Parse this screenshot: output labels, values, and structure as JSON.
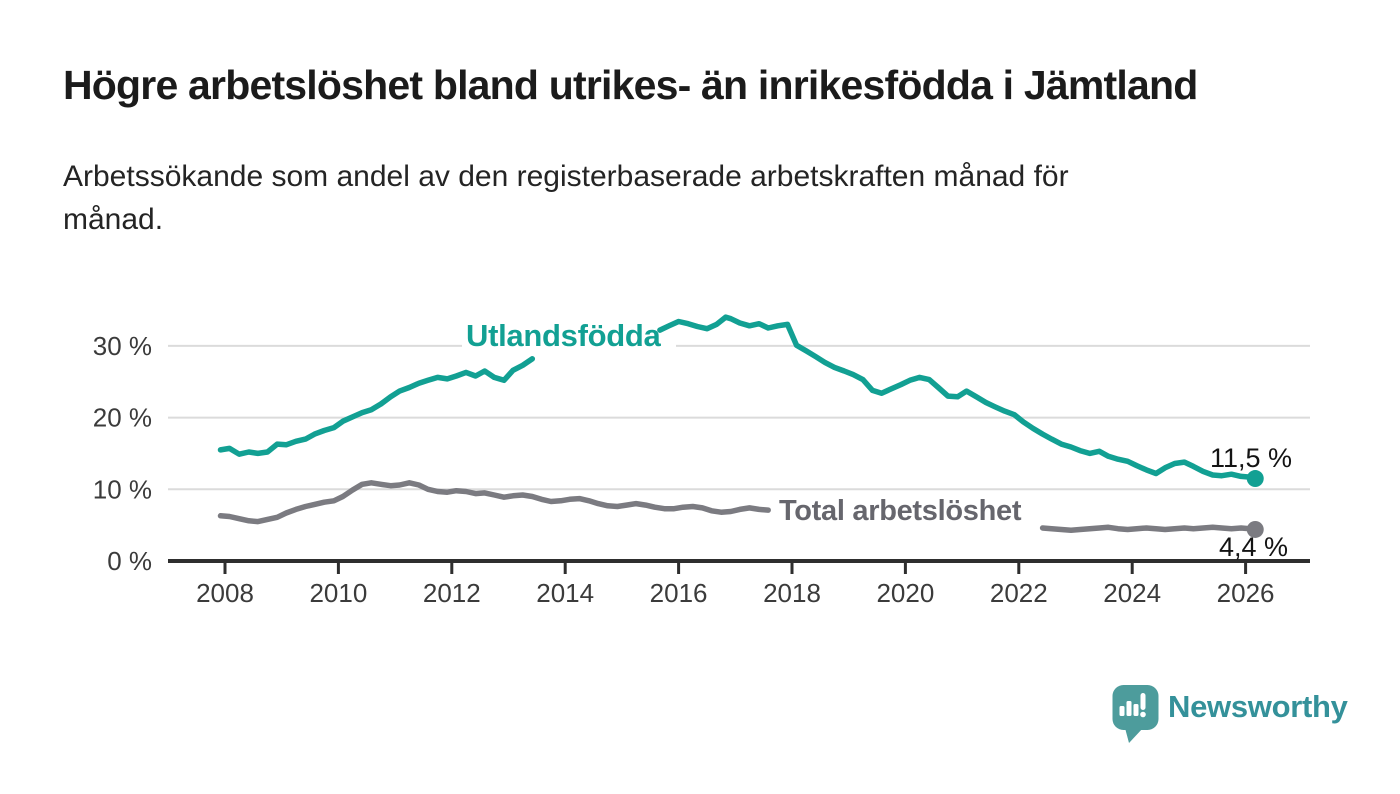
{
  "header": {
    "title": "Högre arbetslöshet bland utrikes- än inrikesfödda i Jämtland",
    "subtitle_line1": "Arbetssökande som andel av den registerbaserade arbetskraften månad för",
    "subtitle_line2": "månad."
  },
  "colors": {
    "teal_line": "#12a093",
    "gray_line": "#7b7b81",
    "gray_label_text": "#66666d",
    "axis": "#2e2e2e",
    "gridline": "#dbdbdb",
    "tick_text": "#3b3b3b",
    "value_label_text": "#141414",
    "logo_bubble": "#4d9c9c",
    "logo_text": "#34919a",
    "background": "#ffffff"
  },
  "chart_data": {
    "type": "line",
    "title": "Högre arbetslöshet bland utrikes- än inrikesfödda i Jämtland",
    "subtitle": "Arbetssökande som andel av den registerbaserade arbetskraften månad för månad.",
    "xlabel": "",
    "ylabel": "",
    "xlim": [
      2007.0,
      2027.2
    ],
    "ylim": [
      0,
      36.5
    ],
    "grid": "horizontal",
    "legend_position": "inline-labels",
    "x_ticks": [
      "2008",
      "2010",
      "2012",
      "2014",
      "2016",
      "2018",
      "2020",
      "2022",
      "2024",
      "2026"
    ],
    "x_tick_values": [
      2008,
      2010,
      2012,
      2014,
      2016,
      2018,
      2020,
      2022,
      2024,
      2026
    ],
    "y_ticks": [
      {
        "value": 0,
        "label": "0 %"
      },
      {
        "value": 10,
        "label": "10 %"
      },
      {
        "value": 20,
        "label": "20 %"
      },
      {
        "value": 30,
        "label": "30 %"
      }
    ],
    "series": [
      {
        "name": "Utlandsfödda",
        "color": "#12a093",
        "end_label": "11,5 %",
        "end_value": 11.5,
        "segments": [
          [
            [
              2007.92,
              15.5
            ],
            [
              2008.08,
              15.7
            ],
            [
              2008.25,
              14.9
            ],
            [
              2008.42,
              15.2
            ],
            [
              2008.58,
              15.0
            ],
            [
              2008.75,
              15.2
            ],
            [
              2008.92,
              16.3
            ],
            [
              2009.08,
              16.2
            ],
            [
              2009.25,
              16.7
            ],
            [
              2009.42,
              17.0
            ],
            [
              2009.58,
              17.7
            ],
            [
              2009.75,
              18.2
            ],
            [
              2009.92,
              18.6
            ],
            [
              2010.08,
              19.5
            ],
            [
              2010.25,
              20.1
            ],
            [
              2010.42,
              20.7
            ],
            [
              2010.58,
              21.1
            ],
            [
              2010.75,
              21.9
            ],
            [
              2010.92,
              22.9
            ],
            [
              2011.08,
              23.7
            ],
            [
              2011.25,
              24.2
            ],
            [
              2011.42,
              24.8
            ],
            [
              2011.58,
              25.2
            ],
            [
              2011.75,
              25.6
            ],
            [
              2011.92,
              25.4
            ],
            [
              2012.08,
              25.8
            ],
            [
              2012.25,
              26.3
            ],
            [
              2012.42,
              25.8
            ],
            [
              2012.58,
              26.5
            ],
            [
              2012.75,
              25.6
            ],
            [
              2012.92,
              25.2
            ],
            [
              2013.08,
              26.6
            ],
            [
              2013.25,
              27.3
            ],
            [
              2013.42,
              28.2
            ]
          ],
          [
            [
              2015.67,
              32.2
            ],
            [
              2015.83,
              32.8
            ],
            [
              2016.0,
              33.4
            ],
            [
              2016.17,
              33.1
            ],
            [
              2016.33,
              32.7
            ],
            [
              2016.5,
              32.4
            ],
            [
              2016.67,
              33.0
            ],
            [
              2016.83,
              34.0
            ],
            [
              2016.92,
              33.8
            ],
            [
              2017.08,
              33.2
            ],
            [
              2017.25,
              32.8
            ],
            [
              2017.42,
              33.1
            ],
            [
              2017.58,
              32.5
            ],
            [
              2017.75,
              32.8
            ],
            [
              2017.92,
              33.0
            ],
            [
              2018.08,
              30.1
            ],
            [
              2018.25,
              29.3
            ],
            [
              2018.42,
              28.5
            ],
            [
              2018.58,
              27.7
            ],
            [
              2018.75,
              27.0
            ],
            [
              2018.92,
              26.5
            ],
            [
              2019.08,
              26.0
            ],
            [
              2019.25,
              25.3
            ],
            [
              2019.42,
              23.8
            ],
            [
              2019.58,
              23.4
            ],
            [
              2019.75,
              24.0
            ],
            [
              2019.92,
              24.6
            ],
            [
              2020.08,
              25.2
            ],
            [
              2020.25,
              25.6
            ],
            [
              2020.42,
              25.3
            ],
            [
              2020.58,
              24.2
            ],
            [
              2020.75,
              23.0
            ],
            [
              2020.92,
              22.9
            ],
            [
              2021.08,
              23.7
            ],
            [
              2021.25,
              22.9
            ],
            [
              2021.42,
              22.1
            ],
            [
              2021.58,
              21.5
            ],
            [
              2021.75,
              20.9
            ],
            [
              2021.92,
              20.4
            ],
            [
              2022.08,
              19.4
            ],
            [
              2022.25,
              18.5
            ],
            [
              2022.42,
              17.7
            ],
            [
              2022.58,
              17.0
            ],
            [
              2022.75,
              16.3
            ],
            [
              2022.92,
              15.9
            ],
            [
              2023.08,
              15.4
            ],
            [
              2023.25,
              15.0
            ],
            [
              2023.42,
              15.3
            ],
            [
              2023.58,
              14.6
            ],
            [
              2023.75,
              14.2
            ],
            [
              2023.92,
              13.9
            ],
            [
              2024.08,
              13.3
            ],
            [
              2024.25,
              12.7
            ],
            [
              2024.42,
              12.2
            ],
            [
              2024.58,
              13.0
            ],
            [
              2024.75,
              13.6
            ],
            [
              2024.92,
              13.8
            ],
            [
              2025.08,
              13.2
            ],
            [
              2025.25,
              12.5
            ],
            [
              2025.42,
              12.0
            ],
            [
              2025.58,
              11.9
            ],
            [
              2025.75,
              12.1
            ],
            [
              2025.92,
              11.8
            ],
            [
              2026.08,
              11.7
            ],
            [
              2026.17,
              11.5
            ]
          ]
        ]
      },
      {
        "name": "Total arbetslöshet",
        "color": "#7b7b81",
        "end_label": "4,4 %",
        "end_value": 4.4,
        "segments": [
          [
            [
              2007.92,
              6.3
            ],
            [
              2008.08,
              6.2
            ],
            [
              2008.25,
              5.9
            ],
            [
              2008.42,
              5.6
            ],
            [
              2008.58,
              5.5
            ],
            [
              2008.75,
              5.8
            ],
            [
              2008.92,
              6.1
            ],
            [
              2009.08,
              6.7
            ],
            [
              2009.25,
              7.2
            ],
            [
              2009.42,
              7.6
            ],
            [
              2009.58,
              7.9
            ],
            [
              2009.75,
              8.2
            ],
            [
              2009.92,
              8.4
            ],
            [
              2010.08,
              9.0
            ],
            [
              2010.25,
              9.9
            ],
            [
              2010.42,
              10.7
            ],
            [
              2010.58,
              10.9
            ],
            [
              2010.75,
              10.7
            ],
            [
              2010.92,
              10.5
            ],
            [
              2011.08,
              10.6
            ],
            [
              2011.25,
              10.9
            ],
            [
              2011.42,
              10.6
            ],
            [
              2011.58,
              10.0
            ],
            [
              2011.75,
              9.7
            ],
            [
              2011.92,
              9.6
            ],
            [
              2012.08,
              9.8
            ],
            [
              2012.25,
              9.7
            ],
            [
              2012.42,
              9.4
            ],
            [
              2012.58,
              9.5
            ],
            [
              2012.75,
              9.2
            ],
            [
              2012.92,
              8.9
            ],
            [
              2013.08,
              9.1
            ],
            [
              2013.25,
              9.2
            ],
            [
              2013.42,
              9.0
            ],
            [
              2013.58,
              8.6
            ],
            [
              2013.75,
              8.3
            ],
            [
              2013.92,
              8.4
            ],
            [
              2014.08,
              8.6
            ],
            [
              2014.25,
              8.7
            ],
            [
              2014.42,
              8.4
            ],
            [
              2014.58,
              8.0
            ],
            [
              2014.75,
              7.7
            ],
            [
              2014.92,
              7.6
            ],
            [
              2015.08,
              7.8
            ],
            [
              2015.25,
              8.0
            ],
            [
              2015.42,
              7.8
            ],
            [
              2015.58,
              7.5
            ],
            [
              2015.75,
              7.3
            ],
            [
              2015.92,
              7.3
            ],
            [
              2016.08,
              7.5
            ],
            [
              2016.25,
              7.6
            ],
            [
              2016.42,
              7.4
            ],
            [
              2016.58,
              7.0
            ],
            [
              2016.75,
              6.8
            ],
            [
              2016.92,
              6.9
            ],
            [
              2017.08,
              7.2
            ],
            [
              2017.25,
              7.4
            ],
            [
              2017.42,
              7.2
            ],
            [
              2017.58,
              7.1
            ]
          ],
          [
            [
              2022.42,
              4.6
            ],
            [
              2022.58,
              4.5
            ],
            [
              2022.75,
              4.4
            ],
            [
              2022.92,
              4.3
            ],
            [
              2023.08,
              4.4
            ],
            [
              2023.25,
              4.5
            ],
            [
              2023.42,
              4.6
            ],
            [
              2023.58,
              4.7
            ],
            [
              2023.75,
              4.5
            ],
            [
              2023.92,
              4.4
            ],
            [
              2024.08,
              4.5
            ],
            [
              2024.25,
              4.6
            ],
            [
              2024.42,
              4.5
            ],
            [
              2024.58,
              4.4
            ],
            [
              2024.75,
              4.5
            ],
            [
              2024.92,
              4.6
            ],
            [
              2025.08,
              4.5
            ],
            [
              2025.25,
              4.6
            ],
            [
              2025.42,
              4.7
            ],
            [
              2025.58,
              4.6
            ],
            [
              2025.75,
              4.5
            ],
            [
              2025.92,
              4.6
            ],
            [
              2026.08,
              4.5
            ],
            [
              2026.17,
              4.4
            ]
          ]
        ]
      }
    ]
  },
  "footer": {
    "brand": "Newsworthy"
  }
}
